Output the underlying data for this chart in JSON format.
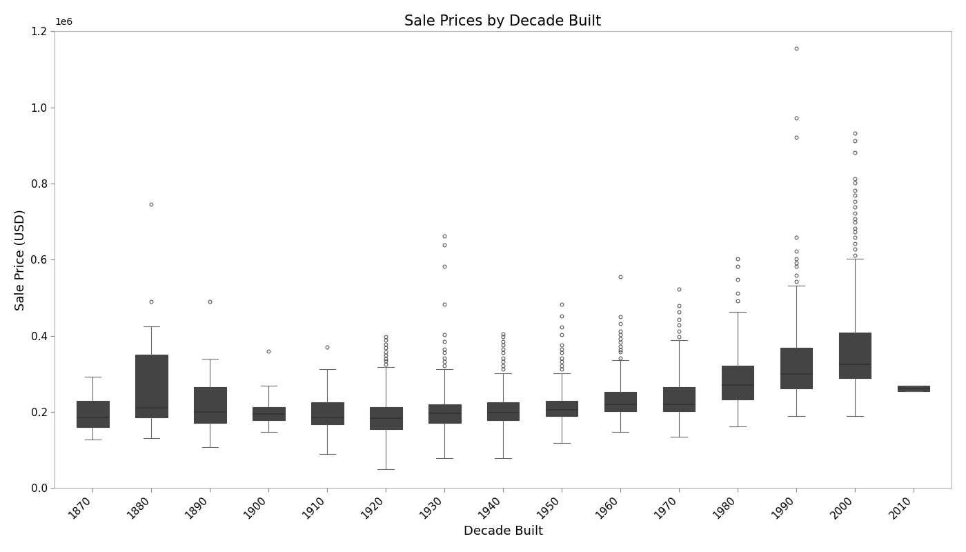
{
  "title": "Sale Prices by Decade Built",
  "xlabel": "Decade Built",
  "ylabel": "Sale Price (USD)",
  "decades": [
    1870,
    1880,
    1890,
    1900,
    1910,
    1920,
    1930,
    1940,
    1950,
    1960,
    1970,
    1980,
    1990,
    2000,
    2010
  ],
  "box_colors": [
    "#5b6bbf",
    "#4f63be",
    "#7b8dcc",
    "#9aaad6",
    "#aab8dd",
    "#b8c4e2",
    "#c0cce8",
    "#cacee8",
    "#d8c8b8",
    "#c8b89a",
    "#c4a888",
    "#c09078",
    "#c07868",
    "#a85040",
    "#c8b0a0"
  ],
  "ylim": [
    0,
    1200000
  ],
  "yticks": [
    0.0,
    0.2,
    0.4,
    0.6,
    0.8,
    1.0,
    1.2
  ],
  "box_data": {
    "1870": {
      "med": 185000,
      "q1": 160000,
      "q3": 228000,
      "whislo": 128000,
      "whishi": 292000,
      "fliers": []
    },
    "1880": {
      "med": 210000,
      "q1": 185000,
      "q3": 350000,
      "whislo": 130000,
      "whishi": 425000,
      "fliers": [
        490000,
        745000
      ]
    },
    "1890": {
      "med": 200000,
      "q1": 170000,
      "q3": 265000,
      "whislo": 108000,
      "whishi": 340000,
      "fliers": [
        490000
      ]
    },
    "1900": {
      "med": 195000,
      "q1": 178000,
      "q3": 213000,
      "whislo": 148000,
      "whishi": 268000,
      "fliers": [
        360000
      ]
    },
    "1910": {
      "med": 185000,
      "q1": 168000,
      "q3": 225000,
      "whislo": 90000,
      "whishi": 312000,
      "fliers": [
        370000
      ]
    },
    "1920": {
      "med": 183000,
      "q1": 155000,
      "q3": 213000,
      "whislo": 50000,
      "whishi": 318000,
      "fliers": [
        325000,
        333000,
        340000,
        348000,
        358000,
        368000,
        378000,
        388000,
        398000
      ]
    },
    "1930": {
      "med": 197000,
      "q1": 170000,
      "q3": 220000,
      "whislo": 78000,
      "whishi": 312000,
      "fliers": [
        322000,
        332000,
        342000,
        355000,
        365000,
        385000,
        402000,
        482000,
        582000,
        638000,
        662000
      ]
    },
    "1940": {
      "med": 198000,
      "q1": 178000,
      "q3": 225000,
      "whislo": 78000,
      "whishi": 302000,
      "fliers": [
        312000,
        322000,
        332000,
        342000,
        355000,
        365000,
        375000,
        385000,
        398000,
        405000
      ]
    },
    "1950": {
      "med": 205000,
      "q1": 188000,
      "q3": 228000,
      "whislo": 118000,
      "whishi": 302000,
      "fliers": [
        312000,
        322000,
        332000,
        342000,
        355000,
        365000,
        375000,
        402000,
        422000,
        452000,
        482000
      ]
    },
    "1960": {
      "med": 220000,
      "q1": 202000,
      "q3": 252000,
      "whislo": 148000,
      "whishi": 335000,
      "fliers": [
        342000,
        358000,
        362000,
        372000,
        382000,
        392000,
        402000,
        412000,
        432000,
        450000,
        555000
      ]
    },
    "1970": {
      "med": 220000,
      "q1": 202000,
      "q3": 265000,
      "whislo": 135000,
      "whishi": 388000,
      "fliers": [
        398000,
        412000,
        428000,
        442000,
        462000,
        478000,
        522000
      ]
    },
    "1980": {
      "med": 270000,
      "q1": 232000,
      "q3": 322000,
      "whislo": 162000,
      "whishi": 462000,
      "fliers": [
        492000,
        512000,
        548000,
        582000,
        602000
      ]
    },
    "1990": {
      "med": 300000,
      "q1": 262000,
      "q3": 368000,
      "whislo": 188000,
      "whishi": 532000,
      "fliers": [
        542000,
        558000,
        582000,
        592000,
        602000,
        622000,
        658000,
        922000,
        972000,
        1155000
      ]
    },
    "2000": {
      "med": 325000,
      "q1": 288000,
      "q3": 408000,
      "whislo": 188000,
      "whishi": 602000,
      "fliers": [
        612000,
        628000,
        642000,
        658000,
        672000,
        682000,
        698000,
        708000,
        722000,
        738000,
        752000,
        768000,
        782000,
        802000,
        812000,
        882000,
        912000,
        932000
      ]
    },
    "2010": {
      "med": 262000,
      "q1": 255000,
      "q3": 268000,
      "whislo": 255000,
      "whishi": 268000,
      "fliers": []
    }
  }
}
